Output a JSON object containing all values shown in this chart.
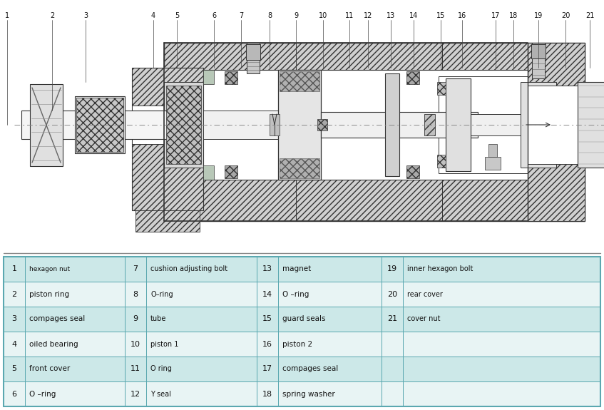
{
  "table_data": [
    [
      [
        "1",
        "hexagon nut"
      ],
      [
        "7",
        "cushion adjusting bolt"
      ],
      [
        "13",
        "magnet"
      ],
      [
        "19",
        "inner hexagon bolt"
      ]
    ],
    [
      [
        "2",
        "piston ring"
      ],
      [
        "8",
        "O–ring"
      ],
      [
        "14",
        "O –ring"
      ],
      [
        "20",
        "rear cover"
      ]
    ],
    [
      [
        "3",
        "compages seal"
      ],
      [
        "9",
        "tube"
      ],
      [
        "15",
        "guard seals"
      ],
      [
        "21",
        "cover nut"
      ]
    ],
    [
      [
        "4",
        "oiled bearing"
      ],
      [
        "10",
        "piston 1"
      ],
      [
        "16",
        "piston 2"
      ],
      [
        "",
        ""
      ]
    ],
    [
      [
        "5",
        "front cover"
      ],
      [
        "11",
        "O ring"
      ],
      [
        "17",
        "compages seal"
      ],
      [
        "",
        ""
      ]
    ],
    [
      [
        "6",
        "O –ring"
      ],
      [
        "12",
        "Y seal"
      ],
      [
        "18",
        "spring washer"
      ],
      [
        "",
        ""
      ]
    ]
  ],
  "row_bg_odd": "#cce8e8",
  "row_bg_even": "#e8f4f4",
  "border_color": "#5ba8b0",
  "num_labels": [
    "1",
    "2",
    "3",
    "4",
    "5",
    "6",
    "7",
    "8",
    "9",
    "10",
    "11",
    "12",
    "13",
    "14",
    "15",
    "16",
    "17",
    "18",
    "19",
    "20",
    "21"
  ],
  "bg_color": "#ffffff"
}
